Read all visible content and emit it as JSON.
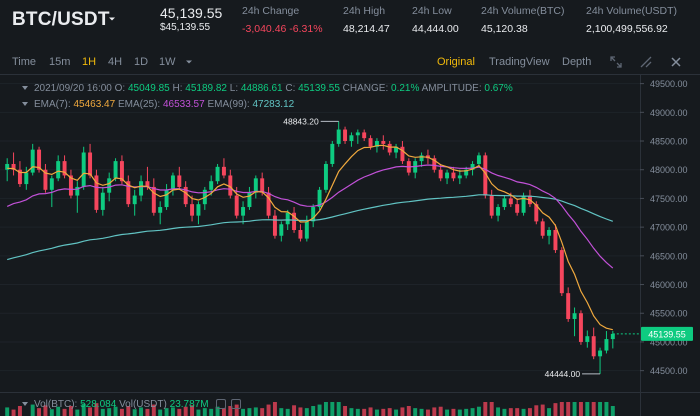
{
  "header": {
    "pair": "BTC/USDT",
    "price": "45,139.55",
    "price_usd": "$45,139.55",
    "stats": [
      {
        "label": "24h Change",
        "value": "-3,040.46 -6.31%",
        "negative": true
      },
      {
        "label": "24h High",
        "value": "48,214.47"
      },
      {
        "label": "24h Low",
        "value": "44,444.00"
      },
      {
        "label": "24h Volume(BTC)",
        "value": "45,120.38"
      },
      {
        "label": "24h Volume(USDT)",
        "value": "2,100,499,556.92"
      }
    ]
  },
  "toolbar": {
    "intervals": [
      "Time",
      "15m",
      "1H",
      "4H",
      "1D",
      "1W"
    ],
    "active_interval": "1H",
    "views": [
      "Original",
      "TradingView",
      "Depth"
    ],
    "active_view": "Original"
  },
  "info": {
    "date": "2021/09/20 16:00",
    "o_label": "O:",
    "o": "45049.85",
    "h_label": "H:",
    "h": "45189.82",
    "l_label": "L:",
    "l": "44886.61",
    "c_label": "C:",
    "c": "45139.55",
    "change_label": "CHANGE:",
    "change": "0.21%",
    "amp_label": "AMPLITUDE:",
    "amplitude": "0.67%",
    "ema7_label": "EMA(7):",
    "ema7": "45463.47",
    "ema25_label": "EMA(25):",
    "ema25": "46533.57",
    "ema99_label": "EMA(99):",
    "ema99": "47283.12"
  },
  "volume": {
    "btc_label": "Vol(BTC):",
    "btc": "528.084",
    "usdt_label": "Vol(USDT)",
    "usdt": "23.787M"
  },
  "colors": {
    "up": "#0ecb81",
    "down": "#f6465d",
    "ema7": "#f0a93e",
    "ema25": "#c251d8",
    "ema99": "#61c3c3",
    "accent": "#f0b90b"
  },
  "chart_data": {
    "type": "candlestick",
    "y_ticks": [
      "49500.00",
      "49000.00",
      "48500.00",
      "48000.00",
      "47500.00",
      "47000.00",
      "46500.00",
      "46000.00",
      "45500.00",
      "45000.00",
      "44500.00"
    ],
    "ylim": [
      44250,
      49650
    ],
    "current_price": "45139.55",
    "high_label": "48843.20",
    "low_label": "44444.00",
    "candles": [
      [
        48000,
        48200,
        47800,
        48100
      ],
      [
        48100,
        48300,
        47900,
        48000
      ],
      [
        48000,
        48150,
        47700,
        47750
      ],
      [
        47750,
        48050,
        47650,
        47950
      ],
      [
        47950,
        48450,
        47900,
        48350
      ],
      [
        48350,
        48400,
        47950,
        48000
      ],
      [
        48000,
        48100,
        47600,
        47650
      ],
      [
        47650,
        47900,
        47350,
        47850
      ],
      [
        47850,
        48250,
        47800,
        48150
      ],
      [
        48150,
        48250,
        47850,
        47900
      ],
      [
        47900,
        48000,
        47500,
        47550
      ],
      [
        47550,
        47800,
        47250,
        47700
      ],
      [
        47700,
        48400,
        47650,
        48300
      ],
      [
        48300,
        48450,
        47850,
        47900
      ],
      [
        47900,
        48000,
        47250,
        47300
      ],
      [
        47300,
        47700,
        47200,
        47600
      ],
      [
        47600,
        47950,
        47450,
        47850
      ],
      [
        47850,
        48200,
        47800,
        48150
      ],
      [
        48150,
        48250,
        47750,
        47800
      ],
      [
        47800,
        47900,
        47350,
        47400
      ],
      [
        47400,
        47650,
        47200,
        47550
      ],
      [
        47550,
        47900,
        47450,
        47800
      ],
      [
        47800,
        48050,
        47650,
        47700
      ],
      [
        47700,
        47850,
        47200,
        47250
      ],
      [
        47250,
        47450,
        47050,
        47350
      ],
      [
        47350,
        47750,
        47300,
        47650
      ],
      [
        47650,
        47950,
        47550,
        47900
      ],
      [
        47900,
        48050,
        47650,
        47700
      ],
      [
        47700,
        47800,
        47350,
        47400
      ],
      [
        47400,
        47550,
        47100,
        47200
      ],
      [
        47200,
        47450,
        47050,
        47400
      ],
      [
        47400,
        47700,
        47300,
        47650
      ],
      [
        47650,
        47900,
        47550,
        47800
      ],
      [
        47800,
        48100,
        47750,
        48050
      ],
      [
        48050,
        48200,
        47850,
        47900
      ],
      [
        47900,
        48000,
        47500,
        47550
      ],
      [
        47550,
        47700,
        47150,
        47200
      ],
      [
        47200,
        47450,
        47050,
        47350
      ],
      [
        47350,
        47700,
        47300,
        47600
      ],
      [
        47600,
        47900,
        47500,
        47850
      ],
      [
        47850,
        47950,
        47550,
        47600
      ],
      [
        47600,
        47700,
        47150,
        47200
      ],
      [
        47200,
        47300,
        46800,
        46850
      ],
      [
        46850,
        47100,
        46750,
        47050
      ],
      [
        47050,
        47300,
        46950,
        47250
      ],
      [
        47250,
        47350,
        46900,
        46950
      ],
      [
        46950,
        47050,
        46750,
        46800
      ],
      [
        46800,
        47200,
        46750,
        47100
      ],
      [
        47100,
        47400,
        47000,
        47350
      ],
      [
        47350,
        47700,
        47300,
        47650
      ],
      [
        47650,
        48150,
        47600,
        48100
      ],
      [
        48100,
        48500,
        48050,
        48450
      ],
      [
        48450,
        48843,
        48400,
        48700
      ],
      [
        48700,
        48750,
        48450,
        48500
      ],
      [
        48500,
        48650,
        48400,
        48600
      ],
      [
        48600,
        48700,
        48450,
        48650
      ],
      [
        48650,
        48700,
        48500,
        48550
      ],
      [
        48550,
        48600,
        48350,
        48400
      ],
      [
        48400,
        48550,
        48300,
        48500
      ],
      [
        48500,
        48600,
        48350,
        48450
      ],
      [
        48450,
        48500,
        48250,
        48300
      ],
      [
        48300,
        48450,
        48200,
        48400
      ],
      [
        48400,
        48500,
        48100,
        48150
      ],
      [
        48150,
        48200,
        47900,
        47950
      ],
      [
        47950,
        48200,
        47850,
        48150
      ],
      [
        48150,
        48300,
        48050,
        48250
      ],
      [
        48250,
        48350,
        48100,
        48200
      ],
      [
        48200,
        48250,
        47950,
        48000
      ],
      [
        48000,
        48100,
        47800,
        47850
      ],
      [
        47850,
        48000,
        47750,
        47950
      ],
      [
        47950,
        48050,
        47800,
        47850
      ],
      [
        47850,
        48000,
        47750,
        47900
      ],
      [
        47900,
        48050,
        47850,
        48000
      ],
      [
        48000,
        48150,
        47900,
        48100
      ],
      [
        48100,
        48300,
        48050,
        48250
      ],
      [
        48250,
        48300,
        47500,
        47550
      ],
      [
        47550,
        47650,
        47150,
        47200
      ],
      [
        47200,
        47400,
        47100,
        47350
      ],
      [
        47350,
        47550,
        47300,
        47500
      ],
      [
        47500,
        47600,
        47350,
        47400
      ],
      [
        47400,
        47500,
        47200,
        47250
      ],
      [
        47250,
        47600,
        47200,
        47550
      ],
      [
        47550,
        47650,
        47350,
        47400
      ],
      [
        47400,
        47450,
        47050,
        47100
      ],
      [
        47100,
        47150,
        46800,
        46850
      ],
      [
        46850,
        47000,
        46700,
        46950
      ],
      [
        46950,
        47050,
        46550,
        46600
      ],
      [
        46600,
        46650,
        45800,
        45850
      ],
      [
        45850,
        45950,
        45350,
        45400
      ],
      [
        45400,
        45600,
        45100,
        45500
      ],
      [
        45500,
        45550,
        44950,
        45000
      ],
      [
        45000,
        45200,
        44900,
        45100
      ],
      [
        45100,
        45250,
        44700,
        44750
      ],
      [
        44750,
        44900,
        44444,
        44850
      ],
      [
        44850,
        45190,
        44800,
        45050
      ],
      [
        45050,
        45190,
        44887,
        45140
      ]
    ],
    "volumes": [
      120,
      90,
      140,
      80,
      160,
      110,
      150,
      95,
      130,
      100,
      140,
      90,
      170,
      120,
      180,
      100,
      110,
      130,
      100,
      140,
      95,
      120,
      100,
      160,
      90,
      110,
      120,
      100,
      130,
      150,
      90,
      110,
      100,
      130,
      110,
      140,
      160,
      100,
      110,
      120,
      110,
      160,
      200,
      110,
      100,
      150,
      120,
      110,
      140,
      160,
      220,
      200,
      260,
      140,
      110,
      100,
      100,
      120,
      90,
      100,
      110,
      90,
      120,
      140,
      110,
      100,
      90,
      120,
      130,
      90,
      100,
      90,
      100,
      110,
      130,
      300,
      200,
      120,
      100,
      110,
      110,
      100,
      110,
      150,
      160,
      110,
      180,
      420,
      380,
      250,
      330,
      200,
      300,
      360,
      260,
      140
    ]
  }
}
